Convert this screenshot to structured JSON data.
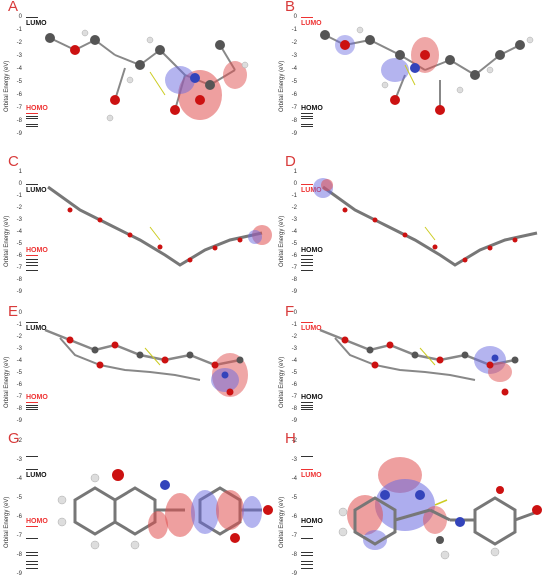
{
  "axis": {
    "ylabel": "Orbital Energy (eV)"
  },
  "colors": {
    "accent": "#e33333",
    "atom_c": "#555555",
    "atom_o": "#cc1111",
    "atom_n": "#3344bb",
    "atom_h": "#dddddd",
    "lobe_red": "#e05050",
    "lobe_blue": "#6a6ae0"
  },
  "panels": [
    {
      "letter": "A",
      "ticks": [
        "0",
        "-1",
        "-2",
        "-3",
        "-4",
        "-5",
        "-6",
        "-7",
        "-8",
        "-9"
      ],
      "lumo": "LUMO",
      "homo": "HOMO"
    },
    {
      "letter": "B",
      "ticks": [
        "0",
        "-1",
        "-2",
        "-3",
        "-4",
        "-5",
        "-6",
        "-7",
        "-8",
        "-9"
      ],
      "lumo": "LUMO",
      "homo": "HOMO"
    },
    {
      "letter": "C",
      "ticks": [
        "1",
        "0",
        "-1",
        "-2",
        "-3",
        "-4",
        "-5",
        "-6",
        "-7",
        "-8",
        "-9"
      ],
      "lumo": "LUMO",
      "homo": "HOMO"
    },
    {
      "letter": "D",
      "ticks": [
        "1",
        "0",
        "-1",
        "-2",
        "-3",
        "-4",
        "-5",
        "-6",
        "-7",
        "-8",
        "-9"
      ],
      "lumo": "LUMO",
      "homo": "HOMO"
    },
    {
      "letter": "E",
      "ticks": [
        "0",
        "-1",
        "-2",
        "-3",
        "-4",
        "-5",
        "-6",
        "-7",
        "-8",
        "-9"
      ],
      "lumo": "LUMO",
      "homo": "HOMO"
    },
    {
      "letter": "F",
      "ticks": [
        "0",
        "-1",
        "-2",
        "-3",
        "-4",
        "-5",
        "-6",
        "-7",
        "-8",
        "-9"
      ],
      "lumo": "LUMO",
      "homo": "HOMO"
    },
    {
      "letter": "G",
      "ticks": [
        "-2",
        "-3",
        "-4",
        "-5",
        "-6",
        "-7",
        "-8",
        "-9"
      ],
      "lumo": "LUMO",
      "homo": "HOMO"
    },
    {
      "letter": "H",
      "ticks": [
        "-2",
        "-3",
        "-4",
        "-5",
        "-6",
        "-7",
        "-8",
        "-9"
      ],
      "lumo": "LUMO",
      "homo": "HOMO"
    }
  ]
}
